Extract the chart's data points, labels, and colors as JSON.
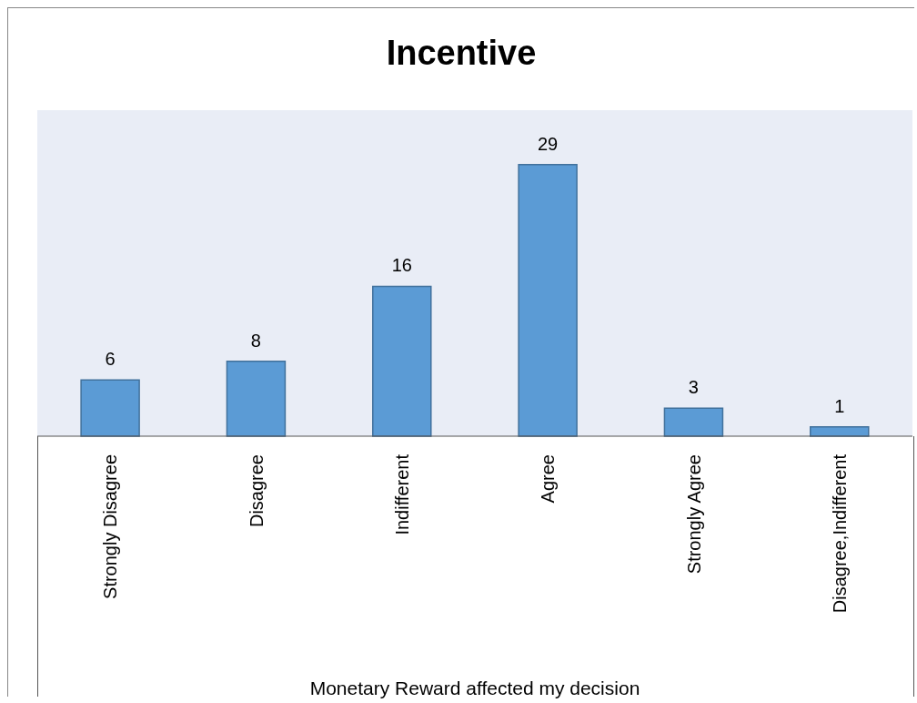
{
  "chart_data": {
    "type": "bar",
    "title": "Incentive",
    "xlabel": "Monetary Reward affected my decision",
    "categories": [
      "Strongly Disagree",
      "Disagree",
      "Indifferent",
      "Agree",
      "Strongly Agree",
      "Disagree,Indifferent"
    ],
    "values": [
      6,
      8,
      16,
      29,
      3,
      1
    ],
    "color": "#5b9bd5",
    "data_labels": true
  }
}
